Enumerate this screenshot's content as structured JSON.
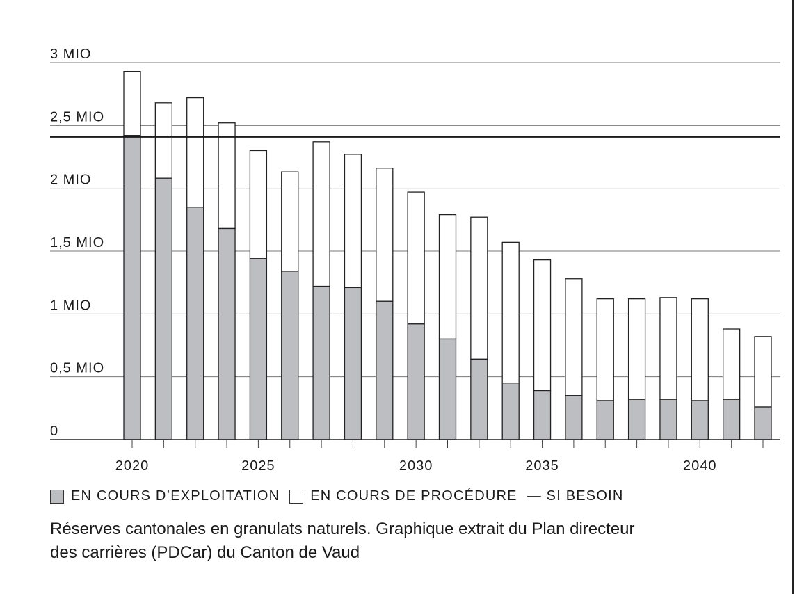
{
  "chart_data": {
    "type": "bar",
    "stacked": true,
    "title": "",
    "xlabel": "",
    "ylabel": "",
    "ylim": [
      0,
      3
    ],
    "y_ticks": [
      {
        "value": 0,
        "label": "0"
      },
      {
        "value": 0.5,
        "label": "0,5 MIO"
      },
      {
        "value": 1,
        "label": "1 MIO"
      },
      {
        "value": 1.5,
        "label": "1,5 MIO"
      },
      {
        "value": 2,
        "label": "2 MIO"
      },
      {
        "value": 2.5,
        "label": "2,5 MIO"
      },
      {
        "value": 3,
        "label": "3 MIO"
      }
    ],
    "x_tick_labels": [
      {
        "bar": 0,
        "label": "2020"
      },
      {
        "bar": 4,
        "label": "2025"
      },
      {
        "bar": 9,
        "label": "2030"
      },
      {
        "bar": 13,
        "label": "2035"
      },
      {
        "bar": 18,
        "label": "2040"
      }
    ],
    "grid": true,
    "series": [
      {
        "name": "EN COURS D’EXPLOITATION",
        "color": "#bdbec2",
        "values": [
          2.42,
          2.08,
          1.85,
          1.68,
          1.44,
          1.34,
          1.22,
          1.21,
          1.1,
          0.92,
          0.8,
          0.64,
          0.45,
          0.39,
          0.35,
          0.31,
          0.32,
          0.32,
          0.31,
          0.32,
          0.26
        ]
      },
      {
        "name": "EN COURS DE PROCÉDURE",
        "color": "#ffffff",
        "values": [
          0.51,
          0.6,
          0.87,
          0.84,
          0.86,
          0.79,
          1.15,
          1.06,
          1.06,
          1.05,
          0.99,
          1.13,
          1.12,
          1.04,
          0.93,
          0.81,
          0.8,
          0.81,
          0.81,
          0.56,
          0.56
        ]
      }
    ],
    "reference_line": {
      "name": "SI BESOIN",
      "value": 2.41,
      "color": "#1a1a1a"
    },
    "legend_placement": "bottom-left"
  },
  "legend": {
    "exploitation": "EN COURS D’EXPLOITATION",
    "procedure": "EN COURS DE PROCÉDURE",
    "besoin": "— SI BESOIN"
  },
  "caption": {
    "line1": "Réserves cantonales en granulats naturels. Graphique extrait du Plan directeur",
    "line2": "des carrières (PDCar) du Canton de Vaud"
  }
}
